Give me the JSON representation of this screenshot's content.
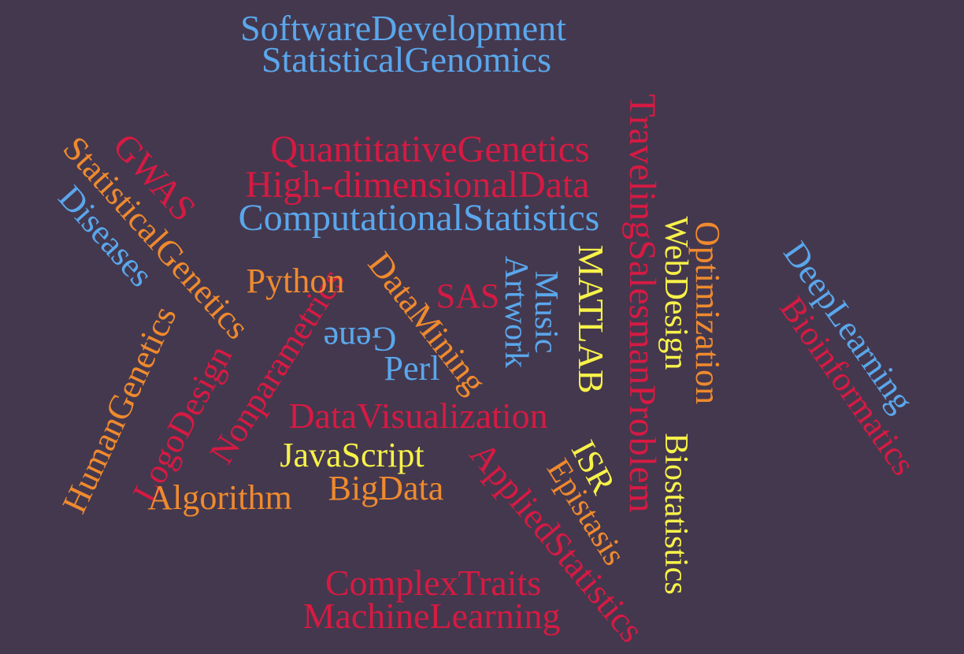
{
  "colors": {
    "background": "#44384e",
    "blue": "#5aa7ec",
    "red": "#d61a43",
    "orange": "#ef8a2e",
    "yellow": "#f7f249"
  },
  "words": {
    "software_development": "SoftwareDevelopment",
    "statistical_genomics": "StatisticalGenomics",
    "traveling_salesman_problem": "TravelingSalesmanProblem",
    "quantitative_genetics": "QuantitativeGenetics",
    "high_dimensional_data": "High-dimensionalData",
    "computational_statistics": "ComputationalStatistics",
    "gwas": "GWAS",
    "statistical_genetics": "StatisticalGenetics",
    "diseases": "Diseases",
    "human_genetics": "HumanGenetics",
    "logo_design": "LogoDesign",
    "nonparametrics": "Nonparametrics",
    "python": "Python",
    "data_mining": "DataMining",
    "sas": "SAS",
    "gene": "Gene",
    "perl": "Perl",
    "music": "Music",
    "artwork": "Artwork",
    "matlab": "MATLAB",
    "web_design": "WebDesign",
    "biostatistics": "Biostatistics",
    "optimization": "Optimization",
    "deep_learning": "DeepLearning",
    "bioinformatics": "Bioinformatics",
    "data_visualization": "DataVisualization",
    "javascript": "JavaScript",
    "big_data": "BigData",
    "algorithm": "Algorithm",
    "applied_statistics": "AppliedStatistics",
    "isr": "ISR",
    "epistasis": "Epistasis",
    "complex_traits": "ComplexTraits",
    "machine_learning": "MachineLearning"
  }
}
